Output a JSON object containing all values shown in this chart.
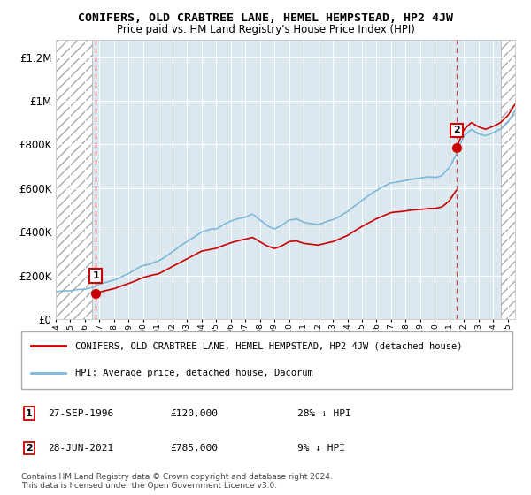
{
  "title": "CONIFERS, OLD CRABTREE LANE, HEMEL HEMPSTEAD, HP2 4JW",
  "subtitle": "Price paid vs. HM Land Registry's House Price Index (HPI)",
  "sale1_date": 1996.74,
  "sale1_price": 120000,
  "sale1_label": "1",
  "sale1_text": "27-SEP-1996",
  "sale1_amount": "£120,000",
  "sale1_hpi": "28% ↓ HPI",
  "sale2_date": 2021.49,
  "sale2_price": 785000,
  "sale2_label": "2",
  "sale2_text": "28-JUN-2021",
  "sale2_amount": "£785,000",
  "sale2_hpi": "9% ↓ HPI",
  "xmin": 1994.0,
  "xmax": 2025.5,
  "ymin": 0,
  "ymax": 1280000,
  "hatch_left_end": 1996.5,
  "hatch_right_start": 2024.5,
  "hpi_color": "#7db8d8",
  "price_color": "#cc0000",
  "plot_bg": "#dce8f0",
  "footer": "Contains HM Land Registry data © Crown copyright and database right 2024.\nThis data is licensed under the Open Government Licence v3.0.",
  "legend_line1": "CONIFERS, OLD CRABTREE LANE, HEMEL HEMPSTEAD, HP2 4JW (detached house)",
  "legend_line2": "HPI: Average price, detached house, Dacorum"
}
